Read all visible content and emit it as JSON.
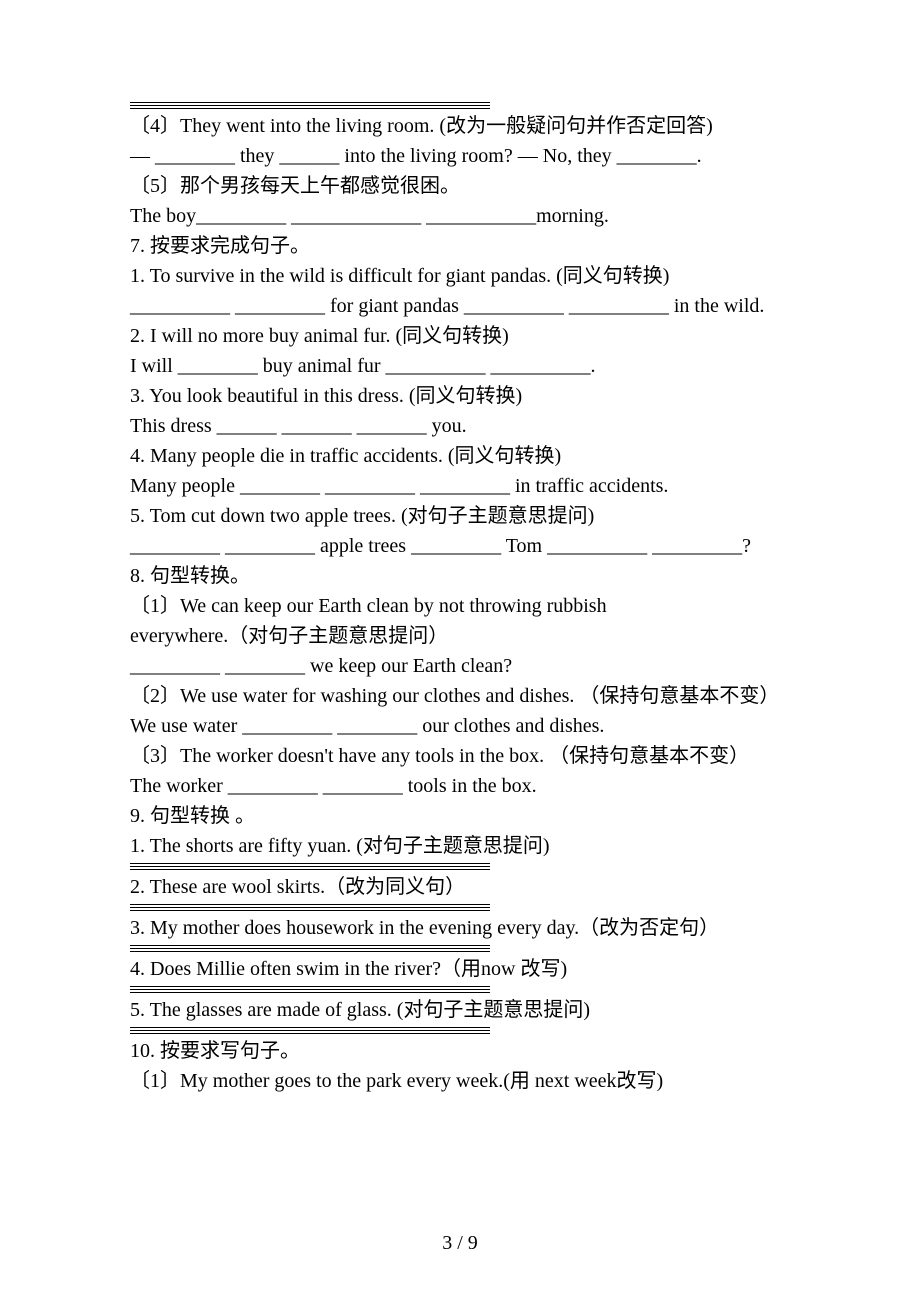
{
  "page": {
    "number": "3 / 9"
  },
  "q4": {
    "prompt": "〔4〕They went into the living room. (改为一般疑问句并作否定回答)",
    "line": "— ________ they ______ into the living room? — No, they ________."
  },
  "q5": {
    "prompt": "〔5〕那个男孩每天上午都感觉很困。",
    "line": "The boy_________ _____________ ___________morning."
  },
  "s7": {
    "title": "7. 按要求完成句子。",
    "i1p": "1. To survive in the wild is difficult for giant pandas. (同义句转换)",
    "i1l": "__________ _________ for giant pandas __________ __________ in the wild.",
    "i2p": "2. I will no more buy animal fur. (同义句转换)",
    "i2l": "I will ________ buy animal fur __________ __________.",
    "i3p": "3. You look beautiful in this dress. (同义句转换)",
    "i3l": "This dress ______ _______ _______ you.",
    "i4p": "4. Many people die in traffic accidents. (同义句转换)",
    "i4l": "Many people ________ _________ _________ in traffic accidents.",
    "i5p": "5. Tom cut down two apple trees. (对句子主题意思提问)",
    "i5l": "_________ _________ apple trees _________ Tom __________ _________?"
  },
  "s8": {
    "title": "8. 句型转换。",
    "i1p1": "〔1〕We can keep our Earth clean by not throwing rubbish",
    "i1p2": "everywhere.（对句子主题意思提问）",
    "i1l": "_________ ________ we keep our Earth clean?",
    "i2p": "〔2〕We use water for washing our clothes and dishes. （保持句意基本不变）",
    "i2l": "We use water _________ ________ our clothes and dishes.",
    "i3p": "〔3〕The worker doesn't have any tools in the box. （保持句意基本不变）",
    "i3l": "The worker _________ ________ tools in the box."
  },
  "s9": {
    "title": "9. 句型转换 。",
    "i1": "1. The shorts are fifty yuan. (对句子主题意思提问)",
    "i2": "2. These are wool skirts.（改为同义句）",
    "i3": "3. My mother does housework in the evening every day.（改为否定句）",
    "i4": "4. Does Millie often swim in the river?（用now 改写)",
    "i5": "5. The glasses are made of glass. (对句子主题意思提问)"
  },
  "s10": {
    "title": "10. 按要求写句子。",
    "i1": "〔1〕My mother goes to the park every week.(用 next week改写)"
  }
}
